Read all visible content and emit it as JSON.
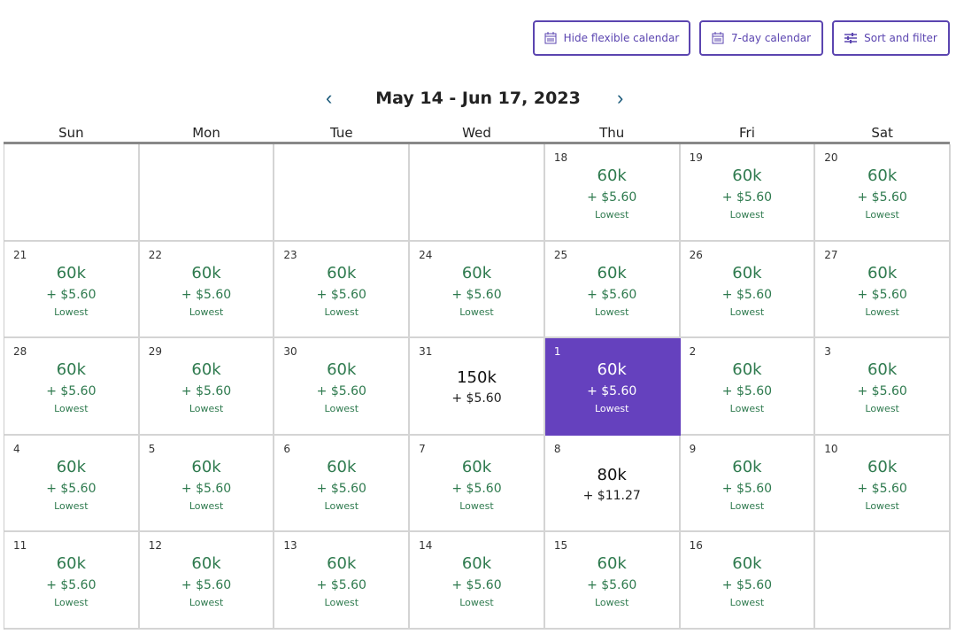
{
  "toolbar": {
    "hide_flexible": "Hide flexible calendar",
    "seven_day": "7-day calendar",
    "sort_filter": "Sort and filter"
  },
  "header": {
    "title": "May 14 - Jun 17, 2023",
    "prev": "‹",
    "next": "›"
  },
  "weekdays": [
    "Sun",
    "Mon",
    "Tue",
    "Wed",
    "Thu",
    "Fri",
    "Sat"
  ],
  "colors": {
    "accent": "#6541be",
    "price": "#2e7a4e"
  },
  "cells": [
    {},
    {},
    {},
    {},
    {
      "day": "18",
      "points": "60k",
      "tax": "+ $5.60",
      "tag": "Lowest"
    },
    {
      "day": "19",
      "points": "60k",
      "tax": "+ $5.60",
      "tag": "Lowest"
    },
    {
      "day": "20",
      "points": "60k",
      "tax": "+ $5.60",
      "tag": "Lowest"
    },
    {
      "day": "21",
      "points": "60k",
      "tax": "+ $5.60",
      "tag": "Lowest"
    },
    {
      "day": "22",
      "points": "60k",
      "tax": "+ $5.60",
      "tag": "Lowest"
    },
    {
      "day": "23",
      "points": "60k",
      "tax": "+ $5.60",
      "tag": "Lowest"
    },
    {
      "day": "24",
      "points": "60k",
      "tax": "+ $5.60",
      "tag": "Lowest"
    },
    {
      "day": "25",
      "points": "60k",
      "tax": "+ $5.60",
      "tag": "Lowest"
    },
    {
      "day": "26",
      "points": "60k",
      "tax": "+ $5.60",
      "tag": "Lowest"
    },
    {
      "day": "27",
      "points": "60k",
      "tax": "+ $5.60",
      "tag": "Lowest"
    },
    {
      "day": "28",
      "points": "60k",
      "tax": "+ $5.60",
      "tag": "Lowest"
    },
    {
      "day": "29",
      "points": "60k",
      "tax": "+ $5.60",
      "tag": "Lowest"
    },
    {
      "day": "30",
      "points": "60k",
      "tax": "+ $5.60",
      "tag": "Lowest"
    },
    {
      "day": "31",
      "points": "150k",
      "tax": "+ $5.60"
    },
    {
      "day": "1",
      "points": "60k",
      "tax": "+ $5.60",
      "tag": "Lowest",
      "selected": true
    },
    {
      "day": "2",
      "points": "60k",
      "tax": "+ $5.60",
      "tag": "Lowest"
    },
    {
      "day": "3",
      "points": "60k",
      "tax": "+ $5.60",
      "tag": "Lowest"
    },
    {
      "day": "4",
      "points": "60k",
      "tax": "+ $5.60",
      "tag": "Lowest"
    },
    {
      "day": "5",
      "points": "60k",
      "tax": "+ $5.60",
      "tag": "Lowest"
    },
    {
      "day": "6",
      "points": "60k",
      "tax": "+ $5.60",
      "tag": "Lowest"
    },
    {
      "day": "7",
      "points": "60k",
      "tax": "+ $5.60",
      "tag": "Lowest"
    },
    {
      "day": "8",
      "points": "80k",
      "tax": "+ $11.27"
    },
    {
      "day": "9",
      "points": "60k",
      "tax": "+ $5.60",
      "tag": "Lowest"
    },
    {
      "day": "10",
      "points": "60k",
      "tax": "+ $5.60",
      "tag": "Lowest"
    },
    {
      "day": "11",
      "points": "60k",
      "tax": "+ $5.60",
      "tag": "Lowest"
    },
    {
      "day": "12",
      "points": "60k",
      "tax": "+ $5.60",
      "tag": "Lowest"
    },
    {
      "day": "13",
      "points": "60k",
      "tax": "+ $5.60",
      "tag": "Lowest"
    },
    {
      "day": "14",
      "points": "60k",
      "tax": "+ $5.60",
      "tag": "Lowest"
    },
    {
      "day": "15",
      "points": "60k",
      "tax": "+ $5.60",
      "tag": "Lowest"
    },
    {
      "day": "16",
      "points": "60k",
      "tax": "+ $5.60",
      "tag": "Lowest"
    },
    {}
  ]
}
